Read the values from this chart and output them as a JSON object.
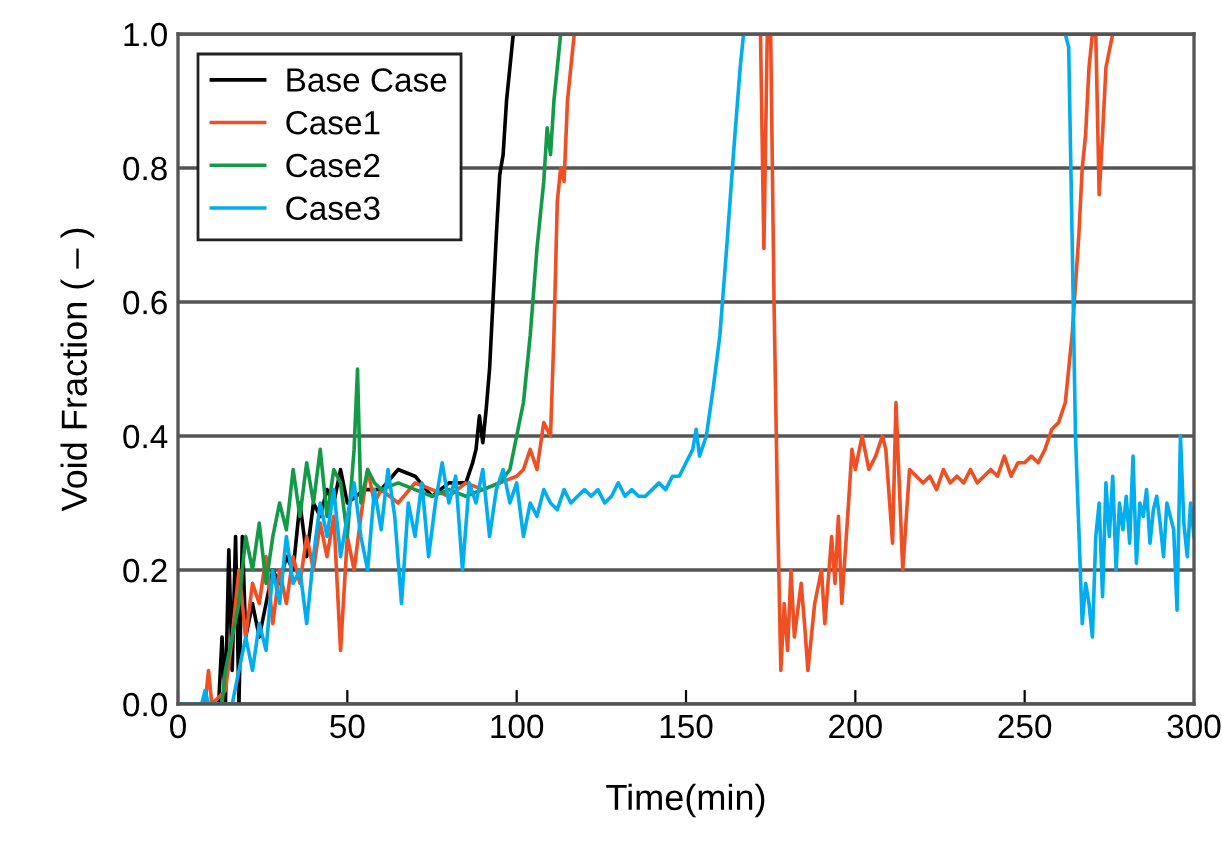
{
  "chart_data": {
    "type": "line",
    "xlabel": "Time(min)",
    "ylabel": "Void Fraction ( – )",
    "xlim": [
      0,
      300
    ],
    "xticks": [
      0,
      50,
      100,
      150,
      200,
      250,
      300
    ],
    "ylim": [
      0,
      1.0
    ],
    "yticks": [
      {
        "value": 0,
        "label": "0.0"
      },
      0.2,
      0.4,
      0.6,
      0.8,
      {
        "value": 1,
        "label": "1.0"
      }
    ],
    "grid": "y",
    "legend": "top left",
    "marker": "none",
    "line_style": "solid",
    "series": [
      {
        "name": "Base Case",
        "color": "#000000",
        "x": [
          0,
          12,
          13,
          14,
          15,
          16,
          17,
          18,
          19,
          20,
          22,
          24,
          26,
          28,
          30,
          32,
          34,
          36,
          38,
          40,
          42,
          44,
          46,
          48,
          50,
          55,
          60,
          65,
          70,
          75,
          80,
          85,
          87,
          88,
          89,
          90,
          91,
          92,
          93,
          94,
          95,
          96,
          97,
          98,
          99,
          300
        ],
        "values": [
          0,
          0,
          0.1,
          0,
          0.23,
          0.05,
          0.25,
          0,
          0.25,
          0.1,
          0.15,
          0.1,
          0.15,
          0.2,
          0.18,
          0.22,
          0.2,
          0.3,
          0.22,
          0.3,
          0.28,
          0.32,
          0.3,
          0.35,
          0.3,
          0.32,
          0.32,
          0.35,
          0.34,
          0.31,
          0.33,
          0.33,
          0.36,
          0.38,
          0.43,
          0.39,
          0.44,
          0.5,
          0.6,
          0.7,
          0.79,
          0.82,
          0.9,
          0.95,
          1.0,
          1.0
        ]
      },
      {
        "name": "Case1",
        "color": "#f04e23",
        "x": [
          0,
          8,
          9,
          10,
          14,
          16,
          18,
          20,
          22,
          24,
          26,
          28,
          30,
          32,
          34,
          36,
          38,
          40,
          42,
          44,
          46,
          48,
          50,
          52,
          54,
          56,
          58,
          60,
          65,
          70,
          75,
          80,
          85,
          90,
          95,
          100,
          102,
          104,
          106,
          108,
          110,
          111,
          112,
          113,
          114,
          115,
          117,
          172,
          173,
          174,
          175,
          176,
          177,
          178,
          179,
          180,
          181,
          182,
          184,
          185,
          186,
          188,
          190,
          191,
          193,
          194,
          195,
          196,
          198,
          199,
          200,
          202,
          204,
          206,
          208,
          209,
          211,
          212,
          214,
          216,
          218,
          220,
          222,
          224,
          226,
          228,
          230,
          232,
          234,
          236,
          238,
          240,
          242,
          244,
          246,
          248,
          250,
          252,
          254,
          256,
          258,
          260,
          262,
          264,
          266,
          267,
          268,
          269,
          270,
          271,
          272,
          273,
          274,
          276,
          300
        ],
        "values": [
          0,
          0,
          0.05,
          0,
          0.02,
          0.1,
          0.2,
          0.1,
          0.18,
          0.15,
          0.22,
          0.12,
          0.2,
          0.15,
          0.22,
          0.18,
          0.25,
          0.2,
          0.27,
          0.22,
          0.28,
          0.08,
          0.25,
          0.2,
          0.28,
          0.35,
          0.3,
          0.32,
          0.3,
          0.33,
          0.32,
          0.31,
          0.33,
          0.32,
          0.33,
          0.34,
          0.35,
          0.38,
          0.35,
          0.42,
          0.4,
          0.55,
          0.75,
          0.8,
          0.78,
          0.9,
          1.0,
          1.0,
          0.68,
          1.0,
          1.0,
          0.6,
          0.3,
          0.05,
          0.15,
          0.08,
          0.2,
          0.1,
          0.18,
          0.12,
          0.05,
          0.15,
          0.2,
          0.12,
          0.25,
          0.18,
          0.28,
          0.15,
          0.3,
          0.38,
          0.35,
          0.4,
          0.35,
          0.37,
          0.4,
          0.38,
          0.24,
          0.45,
          0.2,
          0.35,
          0.34,
          0.33,
          0.34,
          0.32,
          0.35,
          0.33,
          0.34,
          0.33,
          0.35,
          0.33,
          0.34,
          0.35,
          0.34,
          0.37,
          0.34,
          0.36,
          0.36,
          0.37,
          0.36,
          0.38,
          0.41,
          0.42,
          0.45,
          0.55,
          0.7,
          0.8,
          0.85,
          0.95,
          1.0,
          1.0,
          0.76,
          0.85,
          0.95,
          1.0,
          1.0
        ]
      },
      {
        "name": "Case2",
        "color": "#139a48",
        "x": [
          0,
          13,
          14,
          16,
          18,
          20,
          22,
          24,
          26,
          28,
          30,
          32,
          34,
          36,
          38,
          40,
          42,
          44,
          46,
          48,
          50,
          52,
          53,
          54,
          56,
          58,
          60,
          65,
          70,
          75,
          80,
          85,
          90,
          95,
          98,
          100,
          102,
          104,
          106,
          108,
          109,
          110,
          111,
          112,
          113,
          300
        ],
        "values": [
          0,
          0,
          0.05,
          0.1,
          0.15,
          0.25,
          0.2,
          0.27,
          0.18,
          0.25,
          0.3,
          0.26,
          0.35,
          0.28,
          0.36,
          0.3,
          0.38,
          0.28,
          0.35,
          0.33,
          0.25,
          0.38,
          0.5,
          0.3,
          0.35,
          0.33,
          0.32,
          0.33,
          0.32,
          0.31,
          0.32,
          0.31,
          0.32,
          0.33,
          0.35,
          0.4,
          0.45,
          0.55,
          0.68,
          0.78,
          0.86,
          0.82,
          0.9,
          0.95,
          1.0,
          1.0
        ]
      },
      {
        "name": "Case3",
        "color": "#00aeef",
        "x": [
          0,
          7,
          8,
          9,
          16,
          18,
          20,
          22,
          24,
          26,
          28,
          30,
          32,
          34,
          36,
          38,
          40,
          42,
          44,
          46,
          48,
          50,
          52,
          54,
          56,
          58,
          60,
          62,
          64,
          66,
          68,
          70,
          72,
          74,
          76,
          78,
          80,
          82,
          84,
          86,
          88,
          90,
          92,
          94,
          96,
          98,
          100,
          102,
          104,
          106,
          108,
          110,
          112,
          114,
          116,
          118,
          120,
          122,
          124,
          126,
          128,
          130,
          132,
          134,
          136,
          138,
          140,
          142,
          144,
          146,
          148,
          150,
          152,
          153,
          154,
          156,
          158,
          160,
          162,
          164,
          166,
          167,
          262,
          263,
          264,
          265,
          266,
          267,
          268,
          269,
          270,
          271,
          272,
          273,
          274,
          275,
          276,
          277,
          278,
          279,
          280,
          281,
          282,
          283,
          284,
          285,
          286,
          287,
          288,
          289,
          290,
          291,
          292,
          293,
          294,
          295,
          296,
          297,
          298,
          299,
          300
        ],
        "values": [
          0,
          0,
          0.02,
          0,
          0,
          0.05,
          0.1,
          0.05,
          0.12,
          0.08,
          0.2,
          0.15,
          0.25,
          0.18,
          0.2,
          0.12,
          0.22,
          0.3,
          0.25,
          0.32,
          0.22,
          0.28,
          0.33,
          0.25,
          0.2,
          0.32,
          0.26,
          0.35,
          0.28,
          0.15,
          0.3,
          0.25,
          0.33,
          0.22,
          0.3,
          0.36,
          0.3,
          0.34,
          0.2,
          0.33,
          0.3,
          0.35,
          0.25,
          0.32,
          0.35,
          0.3,
          0.33,
          0.25,
          0.3,
          0.28,
          0.32,
          0.3,
          0.29,
          0.32,
          0.3,
          0.31,
          0.32,
          0.31,
          0.32,
          0.3,
          0.31,
          0.33,
          0.31,
          0.32,
          0.31,
          0.31,
          0.32,
          0.33,
          0.32,
          0.34,
          0.34,
          0.36,
          0.38,
          0.41,
          0.37,
          0.4,
          0.47,
          0.55,
          0.68,
          0.82,
          0.95,
          1.0,
          1.0,
          0.98,
          0.7,
          0.4,
          0.26,
          0.12,
          0.18,
          0.15,
          0.1,
          0.25,
          0.3,
          0.16,
          0.33,
          0.25,
          0.34,
          0.2,
          0.3,
          0.26,
          0.31,
          0.24,
          0.37,
          0.21,
          0.3,
          0.28,
          0.32,
          0.24,
          0.29,
          0.31,
          0.27,
          0.22,
          0.3,
          0.28,
          0.26,
          0.14,
          0.4,
          0.27,
          0.22,
          0.3,
          0.25
        ]
      }
    ]
  }
}
